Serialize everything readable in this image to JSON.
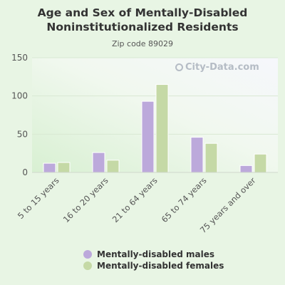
{
  "chart_data": {
    "type": "bar",
    "title_line1": "Age and Sex of Mentally-Disabled",
    "title_line2": "Noninstitutionalized Residents",
    "subtitle": "Zip code 89029",
    "categories": [
      "5 to 15 years",
      "16 to 20 years",
      "21 to 64 years",
      "65 to 74 years",
      "75 years and over"
    ],
    "series": [
      {
        "name": "Mentally-disabled males",
        "color": "#bca9db",
        "values": [
          12,
          26,
          93,
          46,
          9
        ]
      },
      {
        "name": "Mentally-disabled females",
        "color": "#c5d9a6",
        "values": [
          13,
          16,
          115,
          38,
          24
        ]
      }
    ],
    "ylim": [
      0,
      150
    ],
    "yticks": [
      0,
      50,
      100,
      150
    ],
    "grid": true,
    "legend_position": "bottom"
  },
  "watermark": {
    "text": "City-Data.com",
    "icon": "magnifier-icon"
  }
}
